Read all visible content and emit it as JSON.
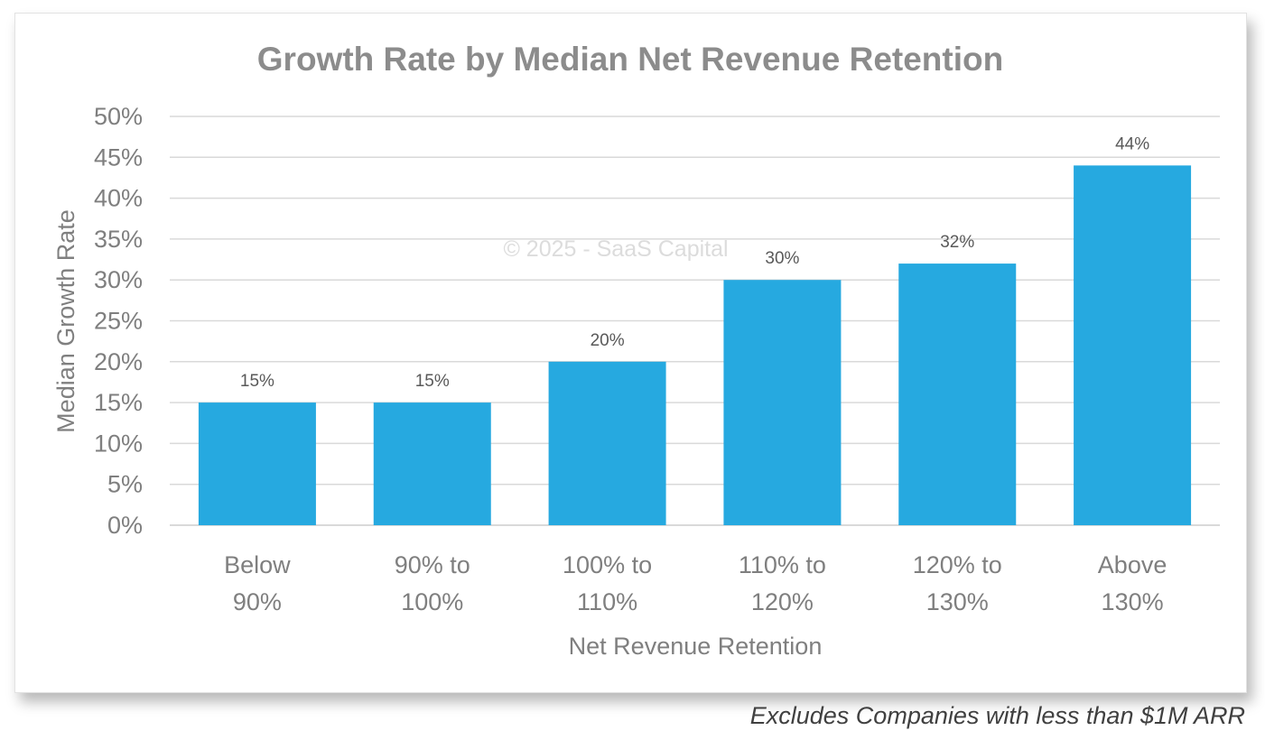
{
  "footnote": "Excludes Companies with less than $1M ARR",
  "colors": {
    "bar": "#26a9e0",
    "grid": "#d9d9d9",
    "axis_text": "#7f7f7f",
    "title": "#8c8c8c",
    "data_label": "#595959",
    "watermark": "#dcdcdc"
  },
  "chart_data": {
    "type": "bar",
    "title": "Growth Rate by Median Net Revenue Retention",
    "watermark": "© 2025 - SaaS Capital",
    "xlabel": "Net Revenue Retention",
    "ylabel": "Median Growth Rate",
    "categories": [
      [
        "Below",
        "90%"
      ],
      [
        "90% to",
        "100%"
      ],
      [
        "100% to",
        "110%"
      ],
      [
        "110% to",
        "120%"
      ],
      [
        "120% to",
        "130%"
      ],
      [
        "Above",
        "130%"
      ]
    ],
    "values": [
      15,
      15,
      20,
      30,
      32,
      44
    ],
    "data_labels": [
      "15%",
      "15%",
      "20%",
      "30%",
      "32%",
      "44%"
    ],
    "ylim": [
      0,
      50
    ],
    "yticks": [
      0,
      5,
      10,
      15,
      20,
      25,
      30,
      35,
      40,
      45,
      50
    ],
    "ytick_labels": [
      "0%",
      "5%",
      "10%",
      "15%",
      "20%",
      "25%",
      "30%",
      "35%",
      "40%",
      "45%",
      "50%"
    ],
    "grid": true,
    "legend": "none"
  }
}
